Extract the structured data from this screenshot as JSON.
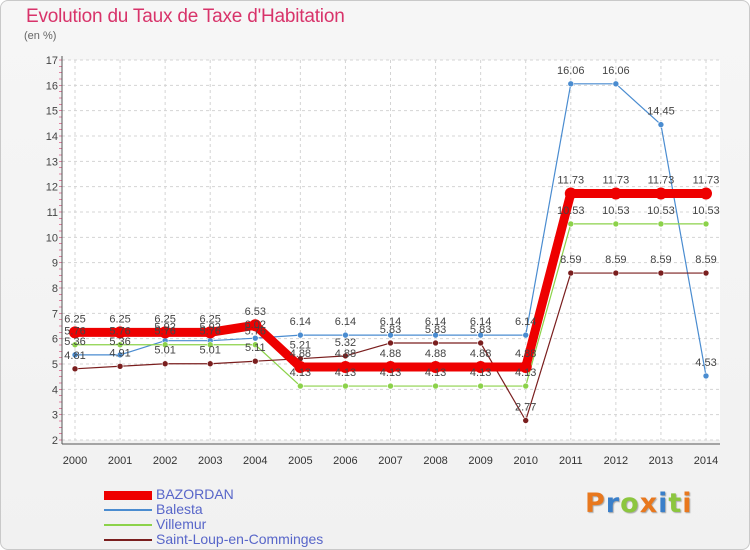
{
  "title": "Evolution du Taux de Taxe d'Habitation",
  "unit_label": "(en %)",
  "logo": {
    "text": "Proxiti",
    "colors": [
      "#e8781e",
      "#3a7fc9",
      "#8cc63f",
      "#e8781e",
      "#3a7fc9",
      "#8cc63f",
      "#e8781e"
    ]
  },
  "chart_data": {
    "type": "line",
    "title": "Evolution du Taux de Taxe d'Habitation",
    "ylabel": "(en %)",
    "xlabel": "",
    "ylim": [
      2,
      17
    ],
    "yticks": [
      "2",
      "3",
      "4",
      "5",
      "6",
      "7",
      "8",
      "9",
      "10",
      "11",
      "12",
      "13",
      "14",
      "15",
      "16",
      "17"
    ],
    "x": [
      "2000",
      "2001",
      "2002",
      "2003",
      "2004",
      "2005",
      "2006",
      "2007",
      "2008",
      "2009",
      "2010",
      "2011",
      "2012",
      "2013",
      "2014"
    ],
    "grid": true,
    "legend_position": "bottom-left",
    "series": [
      {
        "name": "BAZORDAN",
        "color": "#ee0000",
        "values": [
          6.25,
          6.25,
          6.25,
          6.25,
          6.53,
          4.88,
          4.88,
          4.88,
          4.88,
          4.88,
          4.88,
          11.73,
          11.73,
          11.73,
          11.73
        ],
        "labels": [
          "6.25",
          "6.25",
          "6.25",
          "6.25",
          "6.53",
          "4.88",
          "4.88",
          "4.88",
          "4.88",
          "4.88",
          "4.88",
          "11.73",
          "11.73",
          "11.73",
          "11.73"
        ]
      },
      {
        "name": "Balesta",
        "color": "#4a8cd0",
        "values": [
          5.36,
          5.36,
          5.92,
          5.92,
          6.02,
          6.14,
          6.14,
          6.14,
          6.14,
          6.14,
          6.14,
          16.06,
          16.06,
          14.45,
          4.53
        ],
        "labels": [
          "5.36",
          "5.36",
          "5.92",
          "5.92",
          "6.02",
          "6.14",
          "6.14",
          "6.14",
          "6.14",
          "6.14",
          "6.14",
          "16.06",
          "16.06",
          "14.45",
          "4.53"
        ]
      },
      {
        "name": "Villemur",
        "color": "#8cd24a",
        "values": [
          5.76,
          5.76,
          5.76,
          5.76,
          5.76,
          4.13,
          4.13,
          4.13,
          4.13,
          4.13,
          4.13,
          10.53,
          10.53,
          10.53,
          10.53
        ],
        "labels": [
          "5.76",
          "5.76",
          "5.76",
          "5.76",
          "5.76",
          "4.13",
          "4.13",
          "4.13",
          "4.13",
          "4.13",
          "4.13",
          "10.53",
          "10.53",
          "10.53",
          "10.53"
        ]
      },
      {
        "name": "Saint-Loup-en-Comminges",
        "color": "#7a1e1e",
        "values": [
          4.81,
          4.91,
          5.01,
          5.01,
          5.11,
          5.21,
          5.32,
          5.83,
          5.83,
          5.83,
          2.77,
          8.59,
          8.59,
          8.59,
          8.59
        ],
        "labels": [
          "4.81",
          "4.91",
          "5.01",
          "5.01",
          "5.11",
          "5.21",
          "5.32",
          "5.83",
          "5.83",
          "5.83",
          "2.77",
          "8.59",
          "8.59",
          "8.59",
          "8.59"
        ]
      }
    ]
  }
}
